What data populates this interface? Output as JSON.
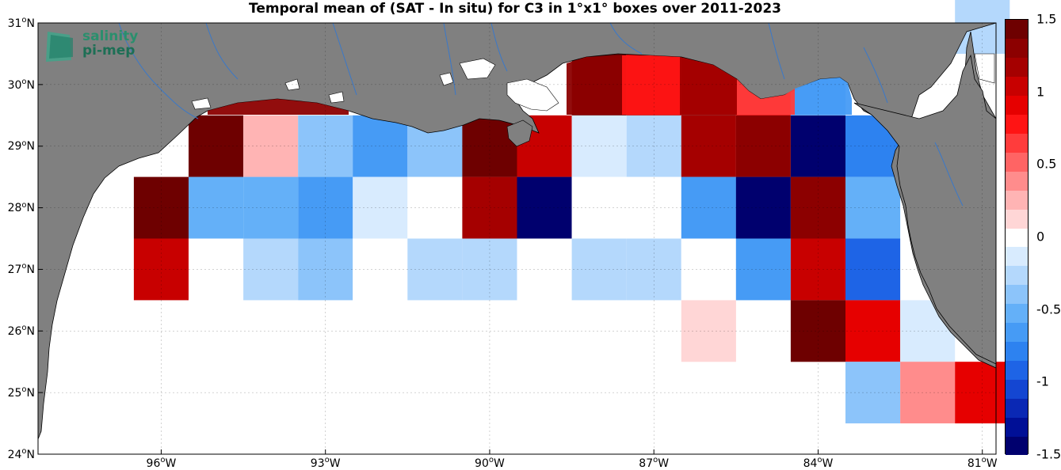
{
  "title": "Temporal mean of (SAT - In situ) for C3 in 1°x1° boxes over 2011-2023",
  "logo": {
    "line1": "salinity",
    "line2": "pi-mep"
  },
  "map": {
    "lon_range": [
      -98.25,
      -80.75
    ],
    "lat_range": [
      24,
      31
    ],
    "lat_ticks": [
      {
        "deg": "31",
        "hem": "N",
        "value": 31
      },
      {
        "deg": "30",
        "hem": "N",
        "value": 30
      },
      {
        "deg": "29",
        "hem": "N",
        "value": 29
      },
      {
        "deg": "28",
        "hem": "N",
        "value": 28
      },
      {
        "deg": "27",
        "hem": "N",
        "value": 27
      },
      {
        "deg": "26",
        "hem": "N",
        "value": 26
      },
      {
        "deg": "25",
        "hem": "N",
        "value": 25
      },
      {
        "deg": "24",
        "hem": "N",
        "value": 24
      }
    ],
    "lon_ticks": [
      {
        "deg": "96",
        "hem": "W",
        "value": -96
      },
      {
        "deg": "93",
        "hem": "W",
        "value": -93
      },
      {
        "deg": "90",
        "hem": "W",
        "value": -90
      },
      {
        "deg": "87",
        "hem": "W",
        "value": -87
      },
      {
        "deg": "84",
        "hem": "W",
        "value": -84
      },
      {
        "deg": "81",
        "hem": "W",
        "value": -81
      }
    ],
    "colors": {
      "land": "#808080",
      "ocean": "#ffffff",
      "rivers": "#3a78c8"
    }
  },
  "chart_data": {
    "type": "heatmap",
    "title": "Temporal mean of (SAT - In situ) for C3 in 1°x1° boxes over 2011-2023",
    "xlabel": "",
    "ylabel": "",
    "units": "",
    "x_range": [
      -98.25,
      -80.75
    ],
    "y_range": [
      24,
      31
    ],
    "clim": [
      -1.5,
      1.5
    ],
    "cells": [
      {
        "lon": -96.0,
        "lat": 28.0,
        "value": 1.4
      },
      {
        "lon": -95.0,
        "lat": 29.0,
        "value": 1.4
      },
      {
        "lon": -94.0,
        "lat": 29.0,
        "value": 0.3
      },
      {
        "lon": -93.0,
        "lat": 29.0,
        "value": -0.35
      },
      {
        "lon": -92.0,
        "lat": 29.0,
        "value": -0.6
      },
      {
        "lon": -91.0,
        "lat": 29.0,
        "value": -0.45
      },
      {
        "lon": -90.0,
        "lat": 29.0,
        "value": 1.4
      },
      {
        "lon": -89.0,
        "lat": 29.0,
        "value": 1.05
      },
      {
        "lon": -88.0,
        "lat": 29.0,
        "value": -0.15
      },
      {
        "lon": -87.0,
        "lat": 29.0,
        "value": -0.25
      },
      {
        "lon": -86.0,
        "lat": 29.0,
        "value": 1.15
      },
      {
        "lon": -85.0,
        "lat": 29.0,
        "value": 1.3
      },
      {
        "lon": -84.0,
        "lat": 29.0,
        "value": -1.5
      },
      {
        "lon": -83.0,
        "lat": 29.0,
        "value": -0.8
      },
      {
        "lon": -88.0,
        "lat": 30.0,
        "value": 1.4
      },
      {
        "lon": -87.0,
        "lat": 30.0,
        "value": 1.05
      },
      {
        "lon": -86.0,
        "lat": 30.0,
        "value": 1.3
      },
      {
        "lon": -85.0,
        "lat": 30.0,
        "value": 0.95
      },
      {
        "lon": -84.0,
        "lat": 30.0,
        "value": -0.5
      },
      {
        "lon": -81.0,
        "lat": 31.0,
        "value": -0.25
      },
      {
        "lon": -95.0,
        "lat": 28.0,
        "value": -0.55
      },
      {
        "lon": -94.0,
        "lat": 28.0,
        "value": -0.55
      },
      {
        "lon": -93.0,
        "lat": 28.0,
        "value": -0.7
      },
      {
        "lon": -92.0,
        "lat": 28.0,
        "value": -0.1
      },
      {
        "lon": -91.0,
        "lat": 28.0,
        "value": 0.0
      },
      {
        "lon": -90.0,
        "lat": 28.0,
        "value": 1.2
      },
      {
        "lon": -89.0,
        "lat": 28.0,
        "value": -1.5
      },
      {
        "lon": -88.0,
        "lat": 28.0,
        "value": 0.0
      },
      {
        "lon": -87.0,
        "lat": 28.0,
        "value": 0.0
      },
      {
        "lon": -86.0,
        "lat": 28.0,
        "value": -0.65
      },
      {
        "lon": -85.0,
        "lat": 28.0,
        "value": -1.5
      },
      {
        "lon": -84.0,
        "lat": 28.0,
        "value": 1.3
      },
      {
        "lon": -83.0,
        "lat": 28.0,
        "value": -0.55
      },
      {
        "lon": -96.0,
        "lat": 27.0,
        "value": 1.1
      },
      {
        "lon": -95.0,
        "lat": 27.0,
        "value": 0.0
      },
      {
        "lon": -94.0,
        "lat": 27.0,
        "value": -0.25
      },
      {
        "lon": -93.0,
        "lat": 27.0,
        "value": -0.45
      },
      {
        "lon": -92.0,
        "lat": 27.0,
        "value": 0.0
      },
      {
        "lon": -91.0,
        "lat": 27.0,
        "value": -0.25
      },
      {
        "lon": -90.0,
        "lat": 27.0,
        "value": -0.25
      },
      {
        "lon": -89.0,
        "lat": 27.0,
        "value": 0.0
      },
      {
        "lon": -88.0,
        "lat": 27.0,
        "value": -0.25
      },
      {
        "lon": -87.0,
        "lat": 27.0,
        "value": -0.25
      },
      {
        "lon": -86.0,
        "lat": 27.0,
        "value": 0.0
      },
      {
        "lon": -85.0,
        "lat": 27.0,
        "value": -0.65
      },
      {
        "lon": -84.0,
        "lat": 27.0,
        "value": 1.05
      },
      {
        "lon": -83.0,
        "lat": 27.0,
        "value": -0.95
      },
      {
        "lon": -86.0,
        "lat": 26.0,
        "value": 0.15
      },
      {
        "lon": -84.0,
        "lat": 26.0,
        "value": 1.4
      },
      {
        "lon": -83.0,
        "lat": 26.0,
        "value": 0.95
      },
      {
        "lon": -82.0,
        "lat": 26.0,
        "value": -0.15
      },
      {
        "lon": -83.0,
        "lat": 25.0,
        "value": -0.35
      },
      {
        "lon": -82.0,
        "lat": 25.0,
        "value": 0.45
      },
      {
        "lon": -81.0,
        "lat": 25.0,
        "value": 0.95
      }
    ]
  },
  "colorbar": {
    "ticks": [
      {
        "label": "1.5",
        "value": 1.5
      },
      {
        "label": "1",
        "value": 1.0
      },
      {
        "label": "0.5",
        "value": 0.5
      },
      {
        "label": "0",
        "value": 0.0
      },
      {
        "label": "-0.5",
        "value": -0.5
      },
      {
        "label": "-1",
        "value": -1.0
      },
      {
        "label": "-1.5",
        "value": -1.5
      }
    ],
    "segments": [
      "#00006e",
      "#000f96",
      "#0a28b4",
      "#1446d2",
      "#1e64e6",
      "#2d82f0",
      "#469bf5",
      "#64b0f8",
      "#8cc4fa",
      "#b4d8fc",
      "#d8ebfe",
      "#ffffff",
      "#ffd6d6",
      "#ffb4b4",
      "#ff8c8c",
      "#ff6464",
      "#ff3c3c",
      "#ff1414",
      "#e60000",
      "#c80000",
      "#a50000",
      "#8c0000",
      "#6e0000"
    ]
  }
}
